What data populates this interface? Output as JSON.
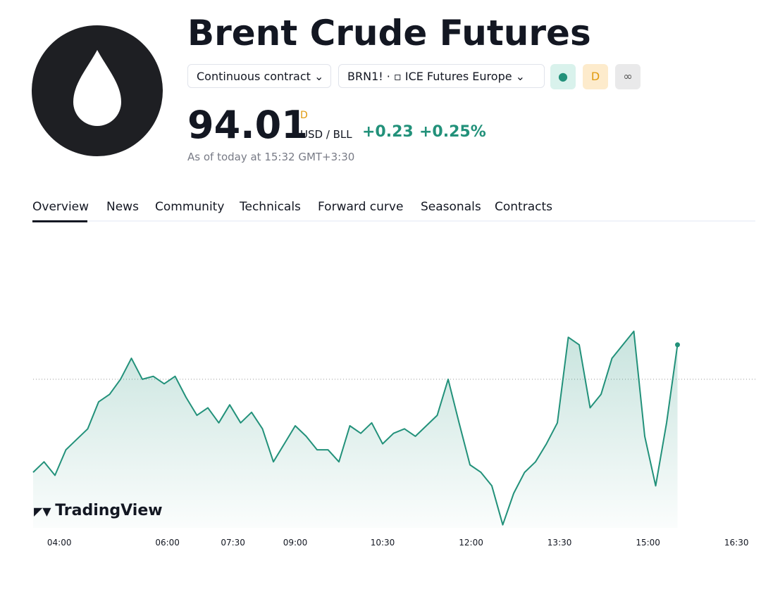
{
  "header": {
    "title": "Brent Crude Futures",
    "contract": "Continuous contract",
    "symbol": "BRN1!",
    "exchange": "ICE Futures Europe",
    "badge": "D",
    "price": "94.01",
    "price_flag": "D",
    "currency": "USD / BLL",
    "change": "+0.23",
    "change_percent": "+0.25%",
    "as_of": "As of today at 15:32 GMT+3:30"
  },
  "tabs": [
    "Overview",
    "News",
    "Community",
    "Technicals",
    "Forward curve",
    "Seasonals",
    "Contracts"
  ],
  "watermark": "TradingView",
  "chart_data": {
    "type": "area",
    "color": "#22917a",
    "values": [
      93.16,
      93.23,
      93.14,
      93.31,
      93.38,
      93.45,
      93.63,
      93.68,
      93.78,
      93.92,
      93.78,
      93.8,
      93.75,
      93.8,
      93.66,
      93.54,
      93.59,
      93.49,
      93.61,
      93.49,
      93.56,
      93.45,
      93.23,
      93.35,
      93.47,
      93.4,
      93.31,
      93.31,
      93.23,
      93.47,
      93.42,
      93.49,
      93.35,
      93.42,
      93.45,
      93.4,
      93.47,
      93.54,
      93.78,
      93.49,
      93.21,
      93.16,
      93.07,
      92.81,
      93.02,
      93.16,
      93.23,
      93.35,
      93.49,
      94.06,
      94.01,
      93.59,
      93.68,
      93.92,
      94.01,
      94.1,
      93.4,
      93.07,
      93.49,
      94.01
    ],
    "baseline": 93.78,
    "ylim": [
      92.79,
      94.76
    ],
    "xlim": [
      0,
      66
    ],
    "xticks": [
      {
        "value": 2.4,
        "label": "04:00"
      },
      {
        "value": 12.3,
        "label": "06:00"
      },
      {
        "value": 18.3,
        "label": "07:30"
      },
      {
        "value": 24,
        "label": "09:00"
      },
      {
        "value": 32,
        "label": "10:30"
      },
      {
        "value": 40.1,
        "label": "12:00"
      },
      {
        "value": 48.2,
        "label": "13:30"
      },
      {
        "value": 56.3,
        "label": "15:00"
      },
      {
        "value": 64.4,
        "label": "16:30"
      }
    ]
  }
}
